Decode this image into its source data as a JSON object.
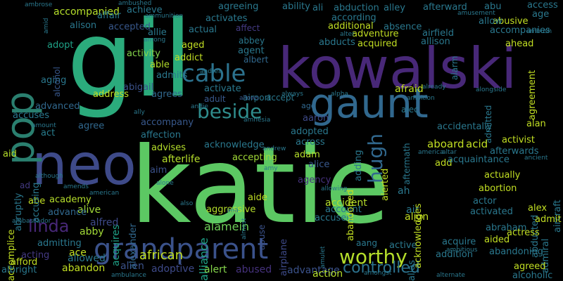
{
  "words": [
    {
      "text": "gil",
      "color": "#2bab7c"
    },
    {
      "text": "katie",
      "color": "#5cc863"
    },
    {
      "text": "kowalski",
      "color": "#482878"
    },
    {
      "text": "neo",
      "color": "#3e4a89"
    },
    {
      "text": "pop",
      "color": "#2a7f6f"
    },
    {
      "text": "gaunt",
      "color": "#31688e"
    },
    {
      "text": "grandparent",
      "color": "#3b528b"
    },
    {
      "text": "cable",
      "color": "#2c728e"
    },
    {
      "text": "beside",
      "color": "#2f8c8c"
    },
    {
      "text": "hugh",
      "color": "#31688e"
    },
    {
      "text": "linda",
      "color": "#482878"
    },
    {
      "text": "worthy",
      "color": "#b5de2b"
    },
    {
      "text": "controlled",
      "color": "#2c728e"
    },
    {
      "text": "african",
      "color": "#c2df23"
    },
    {
      "text": "alamein",
      "color": "#6ece58"
    },
    {
      "text": "alliance",
      "color": "#1fa287"
    },
    {
      "text": "alien",
      "color": "#3b528b"
    },
    {
      "text": "adoptive",
      "color": "#3e4a89"
    },
    {
      "text": "alert",
      "color": "#84d44b"
    },
    {
      "text": "abused",
      "color": "#46327e"
    },
    {
      "text": "advantage",
      "color": "#3b528b"
    },
    {
      "text": "action",
      "color": "#b5de2b"
    },
    {
      "text": "abandon",
      "color": "#c2df23"
    },
    {
      "text": "allowed",
      "color": "#2a788e"
    },
    {
      "text": "ace",
      "color": "#c2df23"
    },
    {
      "text": "abby",
      "color": "#a2da37"
    },
    {
      "text": "alfred",
      "color": "#3e4a89"
    },
    {
      "text": "alive",
      "color": "#a2da37"
    },
    {
      "text": "advance",
      "color": "#31688e"
    },
    {
      "text": "abe",
      "color": "#c2df23"
    },
    {
      "text": "academy",
      "color": "#b5de2b"
    },
    {
      "text": "acquires",
      "color": "#1fa287"
    },
    {
      "text": "alexander",
      "color": "#31688e"
    },
    {
      "text": "aggressive",
      "color": "#b5de2b"
    },
    {
      "text": "aide",
      "color": "#c2df23"
    },
    {
      "text": "agency",
      "color": "#46327e"
    },
    {
      "text": "accident",
      "color": "#b5de2b"
    },
    {
      "text": "account",
      "color": "#2a788e"
    },
    {
      "text": "accused",
      "color": "#2a788e"
    },
    {
      "text": "airplane",
      "color": "#3e4a89"
    },
    {
      "text": "abuse",
      "color": "#3b528b"
    },
    {
      "text": "alice",
      "color": "#38588c"
    },
    {
      "text": "adam",
      "color": "#b5de2b"
    },
    {
      "text": "across",
      "color": "#2a788e"
    },
    {
      "text": "adopted",
      "color": "#2a788e"
    },
    {
      "text": "aaron",
      "color": "#3e4a89"
    },
    {
      "text": "accepting",
      "color": "#a2da37"
    },
    {
      "text": "acknowledge",
      "color": "#2a788e"
    },
    {
      "text": "afterlife",
      "color": "#b5de2b"
    },
    {
      "text": "aim",
      "color": "#3b528b"
    },
    {
      "text": "advises",
      "color": "#b5de2b"
    },
    {
      "text": "affection",
      "color": "#2a788e"
    },
    {
      "text": "accompany",
      "color": "#38588c"
    },
    {
      "text": "agree",
      "color": "#31688e"
    },
    {
      "text": "act",
      "color": "#287d8e"
    },
    {
      "text": "aid",
      "color": "#b5de2b"
    },
    {
      "text": "accuses",
      "color": "#2a788e"
    },
    {
      "text": "advanced",
      "color": "#31688e"
    },
    {
      "text": "address",
      "color": "#c2df23"
    },
    {
      "text": "agrees",
      "color": "#31688e"
    },
    {
      "text": "admits",
      "color": "#2a788e"
    },
    {
      "text": "abigail",
      "color": "#3b528b"
    },
    {
      "text": "able",
      "color": "#b5de2b"
    },
    {
      "text": "activity",
      "color": "#84d44b"
    },
    {
      "text": "aging",
      "color": "#2a788e"
    },
    {
      "text": "adopt",
      "color": "#1fa287"
    },
    {
      "text": "alcohol",
      "color": "#38588c"
    },
    {
      "text": "accompanied",
      "color": "#b5de2b"
    },
    {
      "text": "affair",
      "color": "#2a788e"
    },
    {
      "text": "achieve",
      "color": "#2a788e"
    },
    {
      "text": "alison",
      "color": "#2a788e"
    },
    {
      "text": "accepted",
      "color": "#38588c"
    },
    {
      "text": "allie",
      "color": "#2a788e"
    },
    {
      "text": "aged",
      "color": "#c2df23"
    },
    {
      "text": "addict",
      "color": "#c2df23"
    },
    {
      "text": "actual",
      "color": "#2a788e"
    },
    {
      "text": "activates",
      "color": "#2a788e"
    },
    {
      "text": "agreeing",
      "color": "#2a788e"
    },
    {
      "text": "affect",
      "color": "#443a83"
    },
    {
      "text": "agent",
      "color": "#2a788e"
    },
    {
      "text": "abbey",
      "color": "#2a788e"
    },
    {
      "text": "albert",
      "color": "#31688e"
    },
    {
      "text": "activate",
      "color": "#2a788e"
    },
    {
      "text": "adult",
      "color": "#38588c"
    },
    {
      "text": "airport",
      "color": "#2a788e"
    },
    {
      "text": "allows",
      "color": "#38588c"
    },
    {
      "text": "accept",
      "color": "#2a788e"
    },
    {
      "text": "ago",
      "color": "#31688e"
    },
    {
      "text": "ability",
      "color": "#2a788e"
    },
    {
      "text": "ali",
      "color": "#2a788e"
    },
    {
      "text": "abduction",
      "color": "#2a788e"
    },
    {
      "text": "alley",
      "color": "#2a788e"
    },
    {
      "text": "according",
      "color": "#2a788e"
    },
    {
      "text": "additional",
      "color": "#c2df23"
    },
    {
      "text": "absence",
      "color": "#2a788e"
    },
    {
      "text": "adventure",
      "color": "#c2df23"
    },
    {
      "text": "abducts",
      "color": "#2a788e"
    },
    {
      "text": "acquired",
      "color": "#c2df23"
    },
    {
      "text": "allison",
      "color": "#2a788e"
    },
    {
      "text": "airfield",
      "color": "#2a788e"
    },
    {
      "text": "afterward",
      "color": "#2a788e"
    },
    {
      "text": "abu",
      "color": "#2a788e"
    },
    {
      "text": "abusive",
      "color": "#c2df23"
    },
    {
      "text": "allow",
      "color": "#2a788e"
    },
    {
      "text": "accompanies",
      "color": "#2a788e"
    },
    {
      "text": "access",
      "color": "#2a788e"
    },
    {
      "text": "age",
      "color": "#2a788e"
    },
    {
      "text": "agreement",
      "color": "#c2df23"
    },
    {
      "text": "ahead",
      "color": "#c2df23"
    },
    {
      "text": "alarm",
      "color": "#2a788e"
    },
    {
      "text": "admitted",
      "color": "#2a788e"
    },
    {
      "text": "afraid",
      "color": "#c2df23"
    },
    {
      "text": "ambition",
      "color": "#2a788e"
    },
    {
      "text": "alec",
      "color": "#2a788e"
    },
    {
      "text": "alan",
      "color": "#c2df23"
    },
    {
      "text": "accidentally",
      "color": "#2a788e"
    },
    {
      "text": "aboard",
      "color": "#c2df23"
    },
    {
      "text": "acid",
      "color": "#c2df23"
    },
    {
      "text": "activist",
      "color": "#c2df23"
    },
    {
      "text": "afterwards",
      "color": "#2a788e"
    },
    {
      "text": "add",
      "color": "#c2df23"
    },
    {
      "text": "acquaintance",
      "color": "#2a788e"
    },
    {
      "text": "actually",
      "color": "#c2df23"
    },
    {
      "text": "aircraft",
      "color": "#2a788e"
    },
    {
      "text": "abortion",
      "color": "#c2df23"
    },
    {
      "text": "actor",
      "color": "#2a788e"
    },
    {
      "text": "abducted",
      "color": "#2a788e"
    },
    {
      "text": "admiral",
      "color": "#2a788e"
    },
    {
      "text": "activated",
      "color": "#2a788e"
    },
    {
      "text": "alex",
      "color": "#c2df23"
    },
    {
      "text": "admit",
      "color": "#c2df23"
    },
    {
      "text": "abraham",
      "color": "#2a788e"
    },
    {
      "text": "actress",
      "color": "#c2df23"
    },
    {
      "text": "aided",
      "color": "#c2df23"
    },
    {
      "text": "acquire",
      "color": "#2a788e"
    },
    {
      "text": "addition",
      "color": "#2a788e"
    },
    {
      "text": "abandoning",
      "color": "#2a788e"
    },
    {
      "text": "agreed",
      "color": "#c2df23"
    },
    {
      "text": "alcoholic",
      "color": "#2a788e"
    },
    {
      "text": "active",
      "color": "#2a788e"
    },
    {
      "text": "aang",
      "color": "#2a788e"
    },
    {
      "text": "alias",
      "color": "#2a788e"
    },
    {
      "text": "air",
      "color": "#2a788e"
    },
    {
      "text": "align",
      "color": "#c2df23"
    },
    {
      "text": "ah",
      "color": "#2a788e"
    },
    {
      "text": "acknowledges",
      "color": "#c2df23"
    },
    {
      "text": "abandoned",
      "color": "#c2df23"
    },
    {
      "text": "alerted",
      "color": "#c2df23"
    },
    {
      "text": "aftermath",
      "color": "#2a788e"
    },
    {
      "text": "adding",
      "color": "#2a788e"
    },
    {
      "text": "accomplice",
      "color": "#c2df23"
    },
    {
      "text": "admitting",
      "color": "#2a788e"
    },
    {
      "text": "acting",
      "color": "#443a83"
    },
    {
      "text": "afford",
      "color": "#c2df23"
    },
    {
      "text": "albright",
      "color": "#2a788e"
    },
    {
      "text": "abruptly",
      "color": "#2a788e"
    },
    {
      "text": "accusing",
      "color": "#2a788e"
    },
    {
      "text": "ad",
      "color": "#443a83"
    },
    {
      "text": "amid",
      "color": "#2a788e"
    },
    {
      "text": "amount",
      "color": "#2a788e"
    },
    {
      "text": "ambrose",
      "color": "#2a788e"
    },
    {
      "text": "ambassador",
      "color": "#2a788e"
    },
    {
      "text": "ambushed",
      "color": "#2a788e"
    },
    {
      "text": "ammunition",
      "color": "#2a788e"
    },
    {
      "text": "among",
      "color": "#2a788e"
    },
    {
      "text": "although",
      "color": "#2a788e"
    },
    {
      "text": "ally",
      "color": "#2a788e"
    },
    {
      "text": "andie",
      "color": "#2a788e"
    },
    {
      "text": "amnesia",
      "color": "#2a788e"
    },
    {
      "text": "andrea",
      "color": "#2a788e"
    },
    {
      "text": "alone",
      "color": "#2a788e"
    },
    {
      "text": "andrew",
      "color": "#2a788e"
    },
    {
      "text": "amy",
      "color": "#2a788e"
    },
    {
      "text": "america",
      "color": "#2a788e"
    },
    {
      "text": "altar",
      "color": "#2a788e"
    },
    {
      "text": "ancient",
      "color": "#2a788e"
    },
    {
      "text": "amends",
      "color": "#2a788e"
    },
    {
      "text": "american",
      "color": "#2a788e"
    },
    {
      "text": "allowing",
      "color": "#2a788e"
    },
    {
      "text": "also",
      "color": "#2a788e"
    },
    {
      "text": "ana",
      "color": "#2a788e"
    },
    {
      "text": "almost",
      "color": "#2a788e"
    },
    {
      "text": "amulet",
      "color": "#2a788e"
    },
    {
      "text": "ambulance",
      "color": "#2a788e"
    },
    {
      "text": "amongst",
      "color": "#2a788e"
    },
    {
      "text": "alternate",
      "color": "#2a788e"
    },
    {
      "text": "ambitious",
      "color": "#2a788e"
    },
    {
      "text": "always",
      "color": "#2a788e"
    },
    {
      "text": "alpha",
      "color": "#2a788e"
    },
    {
      "text": "already",
      "color": "#2a788e"
    },
    {
      "text": "alongside",
      "color": "#2a788e"
    },
    {
      "text": "amusement",
      "color": "#2a788e"
    },
    {
      "text": "alter",
      "color": "#2a788e"
    },
    {
      "text": "ambush",
      "color": "#2a788e"
    }
  ]
}
